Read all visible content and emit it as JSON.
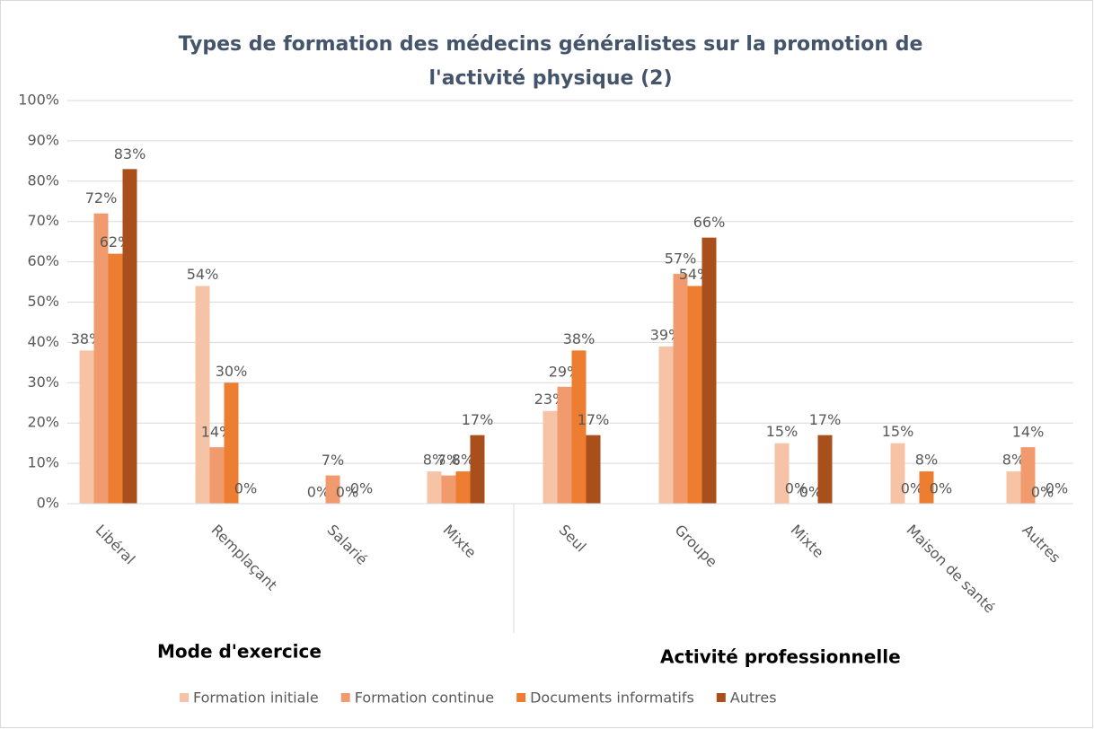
{
  "chart_data": {
    "type": "bar",
    "title": [
      "Types de formation des médecins généralistes sur la promotion de",
      "l'activité physique (2)"
    ],
    "categories": [
      "Libéral",
      "Remplaçant",
      "Salarié",
      "Mixte",
      "Seul",
      "Groupe",
      "Mixte",
      "Maison de santé",
      "Autres"
    ],
    "groups": [
      {
        "label": "Mode d'exercice",
        "size": 4
      },
      {
        "label": "Activité professionnelle",
        "size": 5
      }
    ],
    "series": [
      {
        "name": "Formation initiale",
        "color": "#f6c3a6",
        "values": [
          38,
          54,
          0,
          8,
          23,
          39,
          15,
          15,
          8
        ],
        "value_labels": [
          "38%",
          "54%",
          "0%",
          "8%",
          "23%",
          "39%",
          "15%",
          "15%",
          "8%"
        ]
      },
      {
        "name": "Formation continue",
        "color": "#f09a6e",
        "values": [
          72,
          14,
          7,
          7,
          29,
          57,
          0,
          0,
          14
        ],
        "value_labels": [
          "72%",
          "14%",
          "7%",
          "7%",
          "29%",
          "57%",
          "0%",
          "0%",
          "14%"
        ]
      },
      {
        "name": "Documents informatifs",
        "color": "#ed7d31",
        "values": [
          62,
          30,
          0,
          8,
          38,
          54,
          0,
          8,
          0
        ],
        "value_labels": [
          "62%",
          "30%",
          "0%",
          "8%",
          "38%",
          "54%",
          "0%",
          "8%",
          "0%"
        ]
      },
      {
        "name": "Autres",
        "color": "#a84f1c",
        "values": [
          83,
          0,
          0,
          17,
          17,
          66,
          17,
          0,
          0
        ],
        "value_labels": [
          "83%",
          "0%",
          "0%",
          "17%",
          "17%",
          "66%",
          "17%",
          "0%",
          "0%"
        ]
      }
    ],
    "ylim": [
      0,
      100
    ],
    "yticks": [
      {
        "value": 0,
        "label": "0%"
      },
      {
        "value": 10,
        "label": "10%"
      },
      {
        "value": 20,
        "label": "20%"
      },
      {
        "value": 30,
        "label": "30%"
      },
      {
        "value": 40,
        "label": "40%"
      },
      {
        "value": 50,
        "label": "50%"
      },
      {
        "value": 60,
        "label": "60%"
      },
      {
        "value": 70,
        "label": "70%"
      },
      {
        "value": 80,
        "label": "80%"
      },
      {
        "value": 90,
        "label": "90%"
      },
      {
        "value": 100,
        "label": "100%"
      }
    ],
    "grid": true,
    "legend": "bottom"
  }
}
